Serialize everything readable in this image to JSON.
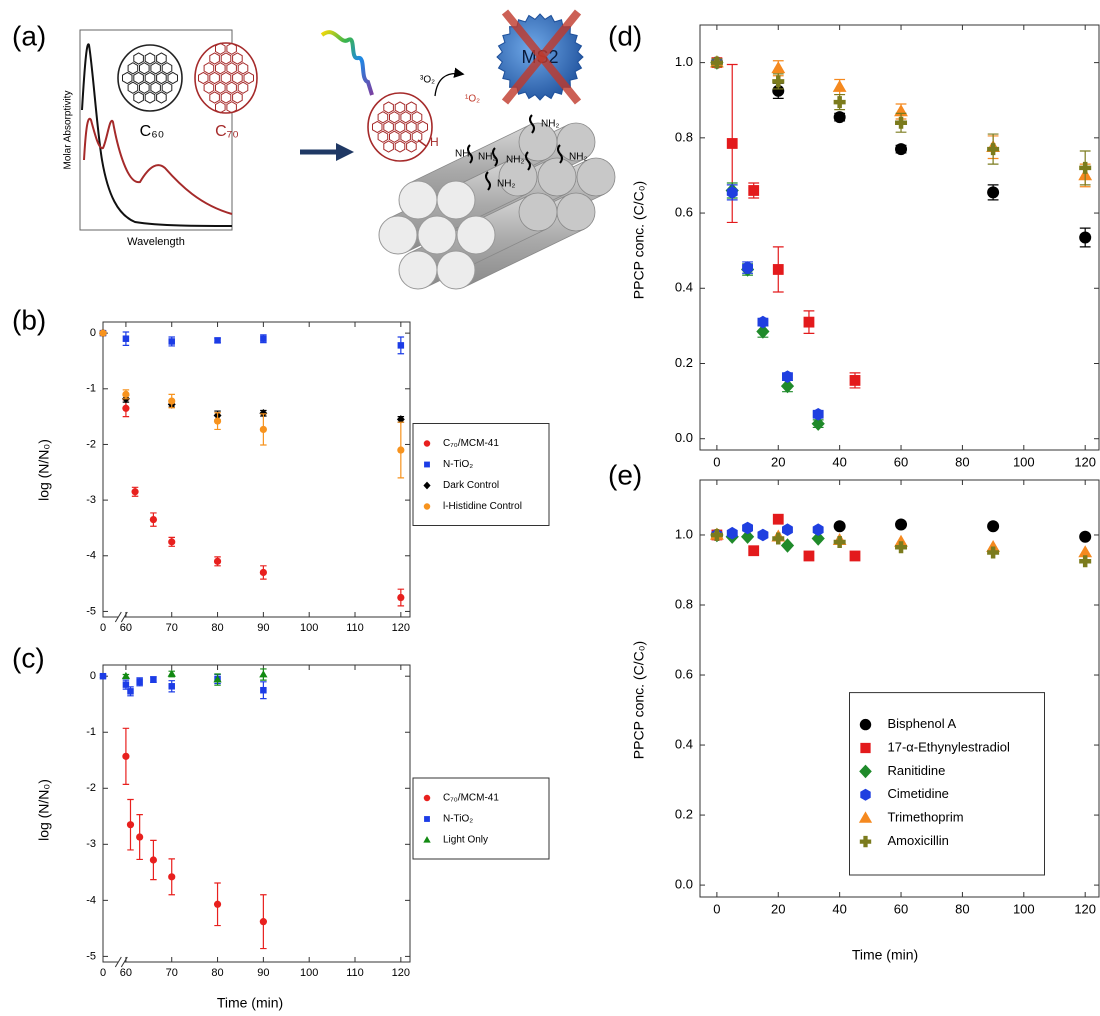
{
  "illustration": {
    "panel_label": "(a)",
    "y_label": "Molar Absorptivity",
    "x_label": "Wavelength",
    "c60": "C₆₀",
    "c70": "C₇₀",
    "virus": "MS2",
    "triplet_oxygen": "³O₂",
    "singlet_oxygen": "¹O₂",
    "hydrogen": "H",
    "amine": "NH",
    "amine_groups": [
      "NH₂",
      "NH₂",
      "NH₂",
      "NH₂",
      "NH₂"
    ]
  },
  "chart_data": [
    {
      "type": "scatter",
      "panel_label": "(b)",
      "y_label": "log (N/N₀)",
      "xlim": [
        0,
        122
      ],
      "x_break": [
        4,
        59
      ],
      "ylim": [
        -5.1,
        0.2
      ],
      "xticks": [
        0,
        60,
        70,
        80,
        90,
        100,
        110,
        120
      ],
      "yticks": [
        0,
        -1,
        -2,
        -3,
        -4,
        -5
      ],
      "legend": "right",
      "series": [
        {
          "name": "C₇₀/MCM-41",
          "color": "#e8201e",
          "marker": "circle",
          "x": [
            0,
            60,
            62,
            66,
            70,
            80,
            90,
            120
          ],
          "values": [
            0,
            -1.35,
            -2.85,
            -3.35,
            -3.75,
            -4.1,
            -4.3,
            -4.75
          ],
          "errors": [
            0.03,
            0.15,
            0.08,
            0.12,
            0.08,
            0.08,
            0.12,
            0.15
          ]
        },
        {
          "name": "N-TiO₂",
          "color": "#1c3ce6",
          "marker": "square",
          "x": [
            0,
            60,
            70,
            80,
            90,
            120
          ],
          "values": [
            0,
            -0.1,
            -0.15,
            -0.13,
            -0.1,
            -0.22
          ],
          "errors": [
            0.03,
            0.12,
            0.08,
            0.04,
            0.07,
            0.15
          ]
        },
        {
          "name": "Dark Control",
          "color": "#000000",
          "marker": "diamond",
          "x": [
            0,
            60,
            70,
            80,
            90,
            120
          ],
          "values": [
            0,
            -1.18,
            -1.28,
            -1.48,
            -1.44,
            -1.55
          ],
          "errors": [
            0.03,
            0.06,
            0.05,
            0.08,
            0.05,
            0.05
          ]
        },
        {
          "name": "l-Histidine Control",
          "color": "#f7931e",
          "marker": "circle",
          "x": [
            0,
            60,
            70,
            80,
            90,
            120
          ],
          "values": [
            0,
            -1.1,
            -1.22,
            -1.58,
            -1.73,
            -2.1
          ],
          "errors": [
            0.03,
            0.08,
            0.12,
            0.15,
            0.28,
            0.5
          ]
        }
      ]
    },
    {
      "type": "scatter",
      "panel_label": "(c)",
      "y_label": "log (N/N₀)",
      "x_label": "Time (min)",
      "xlim": [
        0,
        122
      ],
      "x_break": [
        4,
        59
      ],
      "ylim": [
        -5.1,
        0.2
      ],
      "xticks": [
        0,
        60,
        70,
        80,
        90,
        100,
        110,
        120
      ],
      "yticks": [
        0,
        -1,
        -2,
        -3,
        -4,
        -5
      ],
      "legend": "right",
      "series": [
        {
          "name": "C₇₀/MCM-41",
          "color": "#e8201e",
          "marker": "circle",
          "x": [
            60,
            61,
            63,
            66,
            70,
            80,
            90
          ],
          "values": [
            -1.43,
            -2.65,
            -2.87,
            -3.28,
            -3.58,
            -4.07,
            -4.38
          ],
          "errors": [
            0.5,
            0.45,
            0.4,
            0.35,
            0.32,
            0.38,
            0.48
          ]
        },
        {
          "name": "N-TiO₂",
          "color": "#1c3ce6",
          "marker": "square",
          "x": [
            0,
            60,
            61,
            63,
            66,
            70,
            80,
            90
          ],
          "values": [
            0,
            -0.15,
            -0.27,
            -0.1,
            -0.06,
            -0.18,
            -0.05,
            -0.25
          ],
          "errors": [
            0.02,
            0.08,
            0.08,
            0.07,
            0.05,
            0.1,
            0.08,
            0.15
          ]
        },
        {
          "name": "Light Only",
          "color": "#128a12",
          "marker": "triangle",
          "x": [
            60,
            70,
            80,
            90
          ],
          "values": [
            0,
            0.04,
            -0.06,
            0.03
          ],
          "errors": [
            0.03,
            0.05,
            0.1,
            0.1
          ]
        }
      ]
    },
    {
      "type": "scatter",
      "panel_label": "(d)",
      "y_label": "PPCP conc. (C/C₀)",
      "xlim": [
        -5.5,
        124.5
      ],
      "ylim": [
        -0.03,
        1.1
      ],
      "xticks": [
        0,
        20,
        40,
        60,
        80,
        100,
        120
      ],
      "yticks": [
        {
          "value": 0,
          "label": "0.0"
        },
        0.2,
        0.4,
        0.6,
        0.8,
        {
          "value": 1,
          "label": "1.0"
        }
      ],
      "series": [
        {
          "color": "#000000",
          "marker": "circle",
          "x": [
            0,
            20,
            40,
            60,
            90,
            120
          ],
          "values": [
            1,
            0.925,
            0.855,
            0.77,
            0.655,
            0.535
          ],
          "errors": [
            0.01,
            0.02,
            0.01,
            0.01,
            0.02,
            0.025
          ]
        },
        {
          "color": "#e31a1c",
          "marker": "square",
          "x": [
            0,
            5,
            12,
            20,
            30,
            45
          ],
          "values": [
            1,
            0.785,
            0.66,
            0.45,
            0.31,
            0.155
          ],
          "errors": [
            0.01,
            0.21,
            0.02,
            0.06,
            0.03,
            0.02
          ]
        },
        {
          "color": "#1f8a2a",
          "marker": "diamond",
          "x": [
            0,
            5,
            10,
            15,
            23,
            33
          ],
          "values": [
            1,
            0.66,
            0.45,
            0.285,
            0.14,
            0.04
          ],
          "errors": [
            0.01,
            0.02,
            0.015,
            0.015,
            0.015,
            0.01
          ]
        },
        {
          "color": "#1f3fe0",
          "marker": "hexagon",
          "x": [
            0,
            5,
            10,
            15,
            23,
            33
          ],
          "values": [
            1,
            0.655,
            0.455,
            0.31,
            0.165,
            0.065
          ],
          "errors": [
            0.01,
            0.02,
            0.015,
            0.01,
            0.01,
            0.01
          ]
        },
        {
          "color": "#f5891f",
          "marker": "triangle",
          "x": [
            0,
            20,
            40,
            60,
            90,
            120
          ],
          "values": [
            1,
            0.985,
            0.935,
            0.87,
            0.775,
            0.7
          ],
          "errors": [
            0.01,
            0.02,
            0.02,
            0.02,
            0.03,
            0.03
          ]
        },
        {
          "color": "#7b7b1d",
          "marker": "plus",
          "x": [
            0,
            20,
            40,
            60,
            90,
            120
          ],
          "values": [
            1,
            0.95,
            0.895,
            0.84,
            0.77,
            0.72
          ],
          "errors": [
            0.01,
            0.02,
            0.02,
            0.025,
            0.04,
            0.045
          ]
        }
      ]
    },
    {
      "type": "scatter",
      "panel_label": "(e)",
      "y_label": "PPCP conc. (C/C₀)",
      "x_label": "Time (min)",
      "xlim": [
        -5.5,
        124.5
      ],
      "ylim": [
        -0.034,
        1.157
      ],
      "xticks": [
        0,
        20,
        40,
        60,
        80,
        100,
        120
      ],
      "yticks": [
        {
          "value": 0,
          "label": "0.0"
        },
        0.2,
        0.4,
        0.6,
        0.8,
        {
          "value": 1,
          "label": "1.0"
        }
      ],
      "legend": "lower center",
      "series": [
        {
          "name": "Bisphenol A",
          "color": "#000000",
          "marker": "circle",
          "x": [
            0,
            40,
            60,
            90,
            120
          ],
          "values": [
            1,
            1.025,
            1.03,
            1.025,
            0.995
          ]
        },
        {
          "name": "17-α-Ethynylestradiol",
          "color": "#e31a1c",
          "marker": "square",
          "x": [
            0,
            12,
            20,
            30,
            45
          ],
          "values": [
            1,
            0.955,
            1.045,
            0.94,
            0.94
          ]
        },
        {
          "name": "Ranitidine",
          "color": "#1f8a2a",
          "marker": "diamond",
          "x": [
            0,
            5,
            10,
            23,
            33
          ],
          "values": [
            1,
            0.995,
            0.995,
            0.97,
            0.99
          ]
        },
        {
          "name": "Cimetidine",
          "color": "#1f3fe0",
          "marker": "hexagon",
          "x": [
            0,
            5,
            10,
            15,
            23,
            33
          ],
          "values": [
            1,
            1.005,
            1.02,
            1,
            1.015,
            1.015
          ]
        },
        {
          "name": "Trimethoprim",
          "color": "#f5891f",
          "marker": "triangle",
          "x": [
            0,
            20,
            40,
            60,
            90,
            120
          ],
          "values": [
            1,
            0.995,
            0.985,
            0.98,
            0.965,
            0.95
          ]
        },
        {
          "name": "Amoxicillin",
          "color": "#7b7b1d",
          "marker": "plus",
          "x": [
            0,
            20,
            40,
            60,
            90,
            120
          ],
          "values": [
            1,
            0.99,
            0.98,
            0.965,
            0.95,
            0.925
          ]
        }
      ]
    }
  ]
}
